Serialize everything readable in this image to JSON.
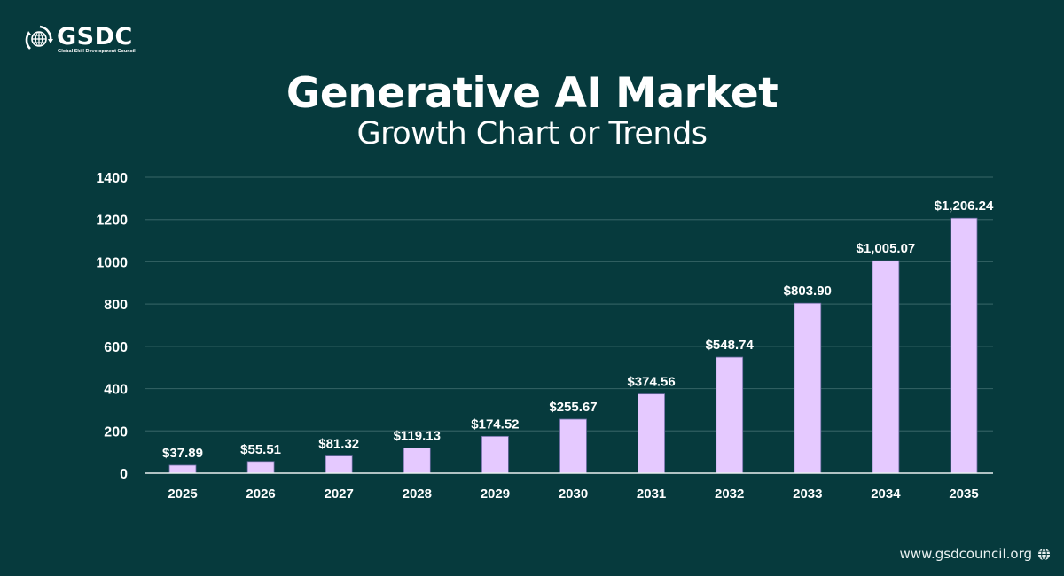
{
  "brand": {
    "name": "GSDC",
    "tagline": "Global Skill Development Council",
    "website": "www.gsdcouncil.org",
    "icon_logo": "globe-arrows-icon",
    "icon_website": "globe-icon"
  },
  "colors": {
    "background": "#063a3d",
    "bar": "#e5c9ff",
    "bar_stroke": "#6a6aa0",
    "grid": "#2f5e60",
    "axis": "#e8f0f0",
    "text": "#ffffff"
  },
  "chart_data": {
    "type": "bar",
    "title": "Generative AI Market",
    "subtitle": "Growth Chart or Trends",
    "xlabel": "",
    "ylabel": "",
    "categories": [
      "2025",
      "2026",
      "2027",
      "2028",
      "2029",
      "2030",
      "2031",
      "2032",
      "2033",
      "2034",
      "2035"
    ],
    "values": [
      37.89,
      55.51,
      81.32,
      119.13,
      174.52,
      255.67,
      374.56,
      548.74,
      803.9,
      1005.07,
      1206.24
    ],
    "data_labels": [
      "$37.89",
      "$55.51",
      "$81.32",
      "$119.13",
      "$174.52",
      "$255.67",
      "$374.56",
      "$548.74",
      "$803.90",
      "$1,005.07",
      "$1,206.24"
    ],
    "ylim": [
      0,
      1400
    ],
    "yticks": [
      0,
      200,
      400,
      600,
      800,
      1000,
      1200,
      1400
    ],
    "ytick_labels": [
      "0",
      "200",
      "400",
      "600",
      "800",
      "1000",
      "1200",
      "1400"
    ],
    "grid": true,
    "legend": "none"
  }
}
